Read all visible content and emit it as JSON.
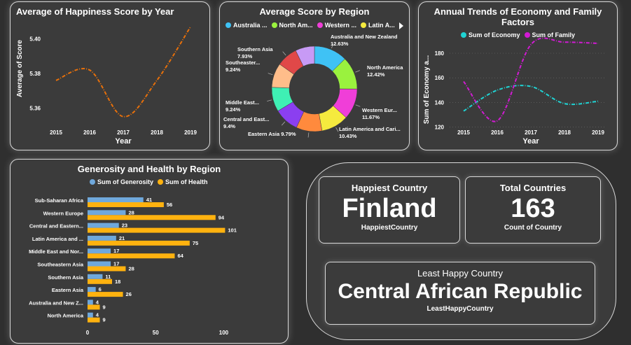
{
  "line_panel": {
    "title": "Average of Happiness Score by Year"
  },
  "donut_panel": {
    "title": "Average Score by Region",
    "legend": [
      "Australia ...",
      "North Am...",
      "Western ...",
      "Latin A..."
    ]
  },
  "trend_panel": {
    "title_line1": "Annual Trends of Economy and Family",
    "title_line2": "Factors",
    "legend": [
      "Sum of Economy",
      "Sum of Family"
    ]
  },
  "bar_panel": {
    "title": "Generosity and Health by Region",
    "legend": [
      "Sum of Generosity",
      "Sum of Health"
    ]
  },
  "kpis": {
    "happiest": {
      "title": "Happiest Country",
      "value": "Finland",
      "sub": "HappiestCountry"
    },
    "total": {
      "title": "Total Countries",
      "value": "163",
      "sub": "Count of Country"
    },
    "least": {
      "title": "Least Happy Country",
      "value": "Central African Republic",
      "sub": "LeastHappyCountry"
    }
  },
  "colors": {
    "line": "#e8700a",
    "economy": "#1fd3d3",
    "family": "#d21ad4",
    "generosity": "#6fa8dc",
    "health": "#ffb20f"
  },
  "chart_data": [
    {
      "type": "line",
      "title": "Average of Happiness Score by Year",
      "xlabel": "Year",
      "ylabel": "Average of Score",
      "x": [
        "2015",
        "2016",
        "2017",
        "2018",
        "2019"
      ],
      "yticks": [
        "5.36",
        "5.38",
        "5.40"
      ],
      "ylim": [
        5.35,
        5.41
      ],
      "series": [
        {
          "values": [
            5.376,
            5.382,
            5.355,
            5.376,
            5.407
          ]
        }
      ]
    },
    {
      "type": "pie",
      "title": "Average Score by Region",
      "slices": [
        {
          "label": "Australia and New Zealand",
          "value": 12.63,
          "text": "12.63%",
          "color": "#3fc2f5"
        },
        {
          "label": "North America",
          "value": 12.42,
          "text": "12.42%",
          "color": "#9af23e"
        },
        {
          "label": "Western Eur...",
          "value": 11.67,
          "text": "11.67%",
          "color": "#f03ed8"
        },
        {
          "label": "Latin America and Cari...",
          "value": 10.43,
          "text": "10.43%",
          "color": "#f5ea3e"
        },
        {
          "label": "Eastern Asia",
          "value": 9.79,
          "text": "9.79%",
          "color": "#ff8a3d"
        },
        {
          "label": "Central and East...",
          "value": 9.4,
          "text": "9.4%",
          "color": "#8b3ff0"
        },
        {
          "label": "Middle East...",
          "value": 9.24,
          "text": "9.24%",
          "color": "#3ff0b4"
        },
        {
          "label": "Southeaster...",
          "value": 9.24,
          "text": "9.24%",
          "color": "#ffbd8a"
        },
        {
          "label": "Southern Asia",
          "value": 7.93,
          "text": "7.93%",
          "color": "#e04848"
        },
        {
          "label": "",
          "value": 7.25,
          "text": "",
          "color": "#c79af5"
        }
      ]
    },
    {
      "type": "line",
      "title": "Annual Trends of Economy and Family Factors",
      "xlabel": "Year",
      "ylabel": "Sum of Economy a...",
      "x": [
        "2015",
        "2016",
        "2017",
        "2018",
        "2019"
      ],
      "yticks": [
        "120",
        "140",
        "160",
        "180"
      ],
      "ylim": [
        118,
        192
      ],
      "series": [
        {
          "name": "Sum of Economy",
          "values": [
            133,
            150,
            153,
            139,
            141
          ]
        },
        {
          "name": "Sum of Family",
          "values": [
            157,
            125,
            187,
            189,
            188
          ]
        }
      ]
    },
    {
      "type": "bar",
      "title": "Generosity and Health by Region",
      "categories": [
        "Sub-Saharan Africa",
        "Western Europe",
        "Central and Eastern...",
        "Latin America and ...",
        "Middle East and Nor...",
        "Southeastern Asia",
        "Southern Asia",
        "Eastern Asia",
        "Australia and New Z...",
        "North America"
      ],
      "xticks": [
        "0",
        "50",
        "100"
      ],
      "xlim": [
        0,
        108
      ],
      "series": [
        {
          "name": "Sum of Generosity",
          "values": [
            41,
            28,
            23,
            21,
            17,
            17,
            11,
            6,
            4,
            4
          ]
        },
        {
          "name": "Sum of Health",
          "values": [
            56,
            94,
            101,
            75,
            64,
            28,
            18,
            26,
            9,
            9
          ]
        }
      ]
    }
  ]
}
